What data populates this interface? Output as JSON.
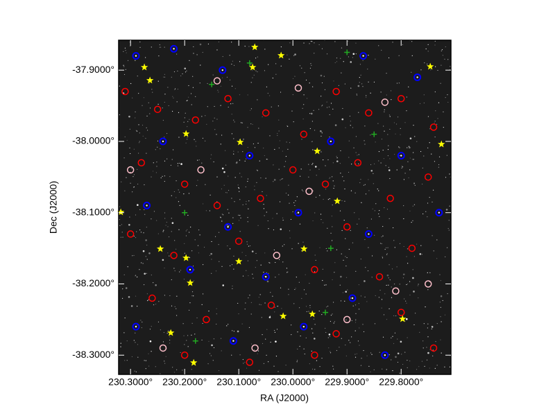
{
  "chart_data": {
    "type": "scatter",
    "x_label": "RA (J2000)",
    "y_label": "Dec (J2000)",
    "xlim": [
      230.322,
      229.708
    ],
    "ylim": [
      -38.327,
      -37.858
    ],
    "xticks": [
      {
        "value": 230.3,
        "label": "230.3000°"
      },
      {
        "value": 230.2,
        "label": "230.2000°"
      },
      {
        "value": 230.1,
        "label": "230.1000°"
      },
      {
        "value": 230.0,
        "label": "230.0000°"
      },
      {
        "value": 229.9,
        "label": "229.9000°"
      },
      {
        "value": 229.8,
        "label": "229.8000°"
      }
    ],
    "yticks": [
      {
        "value": -37.9,
        "label": "-37.9000°"
      },
      {
        "value": -38.0,
        "label": "-38.0000°"
      },
      {
        "value": -38.1,
        "label": "-38.1000°"
      },
      {
        "value": -38.2,
        "label": "-38.2000°"
      },
      {
        "value": -38.3,
        "label": "-38.3000°"
      }
    ],
    "series": [
      {
        "color": "#ff0000",
        "marker": "circle",
        "x": [
          230.31,
          230.25,
          230.18,
          230.12,
          230.05,
          229.98,
          229.92,
          229.86,
          229.8,
          229.74,
          230.28,
          230.2,
          230.14,
          230.06,
          230.0,
          229.94,
          229.88,
          229.82,
          229.75,
          230.3,
          230.22,
          230.1,
          229.96,
          229.9,
          229.84,
          229.78,
          230.26,
          230.16,
          230.04,
          229.92,
          229.8,
          229.74,
          230.2,
          230.08,
          229.96
        ],
        "y": [
          -37.93,
          -37.955,
          -37.97,
          -37.94,
          -37.96,
          -37.99,
          -37.93,
          -37.96,
          -37.94,
          -37.98,
          -38.03,
          -38.06,
          -38.09,
          -38.08,
          -38.04,
          -38.06,
          -38.03,
          -38.08,
          -38.05,
          -38.13,
          -38.16,
          -38.14,
          -38.18,
          -38.12,
          -38.19,
          -38.15,
          -38.22,
          -38.25,
          -38.23,
          -38.27,
          -38.24,
          -38.29,
          -38.3,
          -38.31,
          -38.3
        ]
      },
      {
        "color": "#0000ff",
        "marker": "dot-circle",
        "x": [
          230.29,
          230.22,
          230.13,
          229.87,
          229.77,
          230.24,
          230.08,
          229.93,
          229.8,
          230.27,
          230.12,
          229.99,
          229.86,
          229.73,
          230.19,
          230.05,
          229.89,
          230.29,
          230.11,
          229.98,
          229.83
        ],
        "y": [
          -37.88,
          -37.87,
          -37.9,
          -37.88,
          -37.91,
          -38.0,
          -38.02,
          -38.0,
          -38.02,
          -38.09,
          -38.12,
          -38.1,
          -38.13,
          -38.1,
          -38.18,
          -38.19,
          -38.22,
          -38.26,
          -38.28,
          -38.26,
          -38.3
        ]
      },
      {
        "color": "#ffc0cb",
        "marker": "circle",
        "x": [
          230.14,
          229.99,
          229.83,
          230.17,
          229.97,
          229.75,
          230.3,
          230.03,
          229.9,
          230.24,
          230.07,
          229.81
        ],
        "y": [
          -37.915,
          -37.925,
          -37.945,
          -38.04,
          -38.07,
          -38.2,
          -38.04,
          -38.16,
          -38.25,
          -38.29,
          -38.29,
          -38.21
        ]
      },
      {
        "color": "#22aa22",
        "marker": "cross",
        "x": [
          230.15,
          230.08,
          229.9,
          229.85,
          230.2,
          229.93,
          230.18,
          229.94
        ],
        "y": [
          -37.92,
          -37.89,
          -37.875,
          -37.99,
          -38.1,
          -38.15,
          -38.28,
          -38.24
        ]
      },
      {
        "color": "#ffff00",
        "marker": "star",
        "x": [
          230.0705,
          230.0218,
          230.2744,
          230.0744,
          230.2641,
          229.7462,
          230.0974,
          229.9551,
          229.7256,
          230.1974,
          229.918,
          230.318,
          230.2449,
          230.1974,
          230.1,
          229.9795,
          230.1897,
          230.018,
          229.9641,
          229.7974,
          230.2256,
          230.1833
        ],
        "y": [
          -37.8677,
          -37.8794,
          -37.896,
          -37.896,
          -37.9144,
          -37.895,
          -38.0011,
          -38.0137,
          -38.004,
          -37.9894,
          -38.0838,
          -38.0994,
          -38.1509,
          -38.1636,
          -38.1685,
          -38.1509,
          -38.1986,
          -38.2453,
          -38.2424,
          -38.2492,
          -38.2687,
          -38.3106
        ]
      }
    ]
  }
}
